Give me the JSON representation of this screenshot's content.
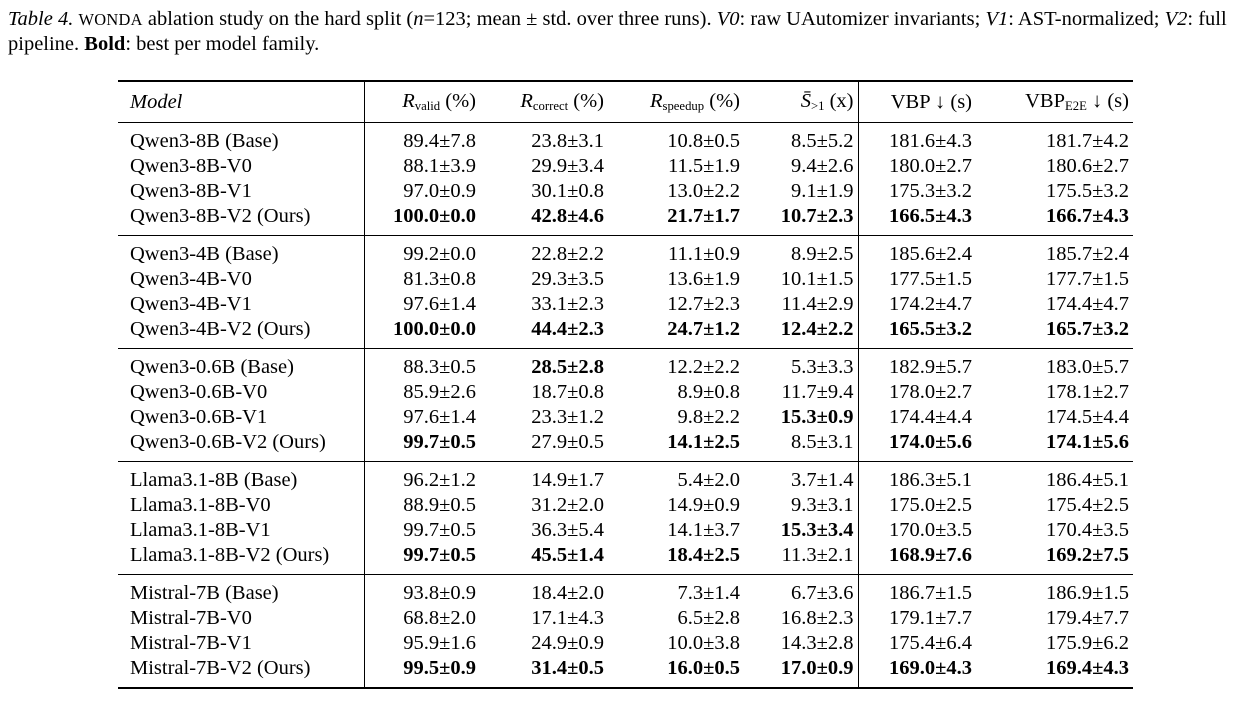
{
  "caption": {
    "label": "Table 4.",
    "name": "WONDA",
    "text1": " ablation study on the hard split (",
    "n": "n",
    "text2": "=123; mean ± std. over three runs). ",
    "v0_label": "V0",
    "v0_text": ": raw UAutomizer invariants; ",
    "v1_label": "V1",
    "v1_text": ": AST-normalized; ",
    "v2_label": "V2",
    "v2_text": ": full pipeline. ",
    "bold_label": "Bold",
    "bold_text": ": best per model family."
  },
  "header": {
    "model": "Model",
    "valid": {
      "sym": "R",
      "sub": "valid",
      "unit": " (%)"
    },
    "correct": {
      "sym": "R",
      "sub": "correct",
      "unit": " (%)"
    },
    "speedup": {
      "sym": "R",
      "sub": "speedup",
      "unit": " (%)"
    },
    "sbar": {
      "sym": "S̄",
      "sub": ">1",
      "unit": " (x)"
    },
    "vbp": "VBP ↓ (s)",
    "vbpe2e": {
      "pre": "VBP",
      "sub": "E2E",
      "unit": " ↓ (s)"
    }
  },
  "groups": [
    {
      "rows": [
        {
          "model": "Qwen3-8B (Base)",
          "cells": [
            "89.4±7.8",
            "23.8±3.1",
            "10.8±0.5",
            "8.5±5.2",
            "181.6±4.3",
            "181.7±4.2"
          ],
          "bold": [
            false,
            false,
            false,
            false,
            false,
            false
          ]
        },
        {
          "model": "Qwen3-8B-V0",
          "cells": [
            "88.1±3.9",
            "29.9±3.4",
            "11.5±1.9",
            "9.4±2.6",
            "180.0±2.7",
            "180.6±2.7"
          ],
          "bold": [
            false,
            false,
            false,
            false,
            false,
            false
          ]
        },
        {
          "model": "Qwen3-8B-V1",
          "cells": [
            "97.0±0.9",
            "30.1±0.8",
            "13.0±2.2",
            "9.1±1.9",
            "175.3±3.2",
            "175.5±3.2"
          ],
          "bold": [
            false,
            false,
            false,
            false,
            false,
            false
          ]
        },
        {
          "model": "Qwen3-8B-V2 (Ours)",
          "cells": [
            "100.0±0.0",
            "42.8±4.6",
            "21.7±1.7",
            "10.7±2.3",
            "166.5±4.3",
            "166.7±4.3"
          ],
          "bold": [
            true,
            true,
            true,
            true,
            true,
            true
          ]
        }
      ]
    },
    {
      "rows": [
        {
          "model": "Qwen3-4B (Base)",
          "cells": [
            "99.2±0.0",
            "22.8±2.2",
            "11.1±0.9",
            "8.9±2.5",
            "185.6±2.4",
            "185.7±2.4"
          ],
          "bold": [
            false,
            false,
            false,
            false,
            false,
            false
          ]
        },
        {
          "model": "Qwen3-4B-V0",
          "cells": [
            "81.3±0.8",
            "29.3±3.5",
            "13.6±1.9",
            "10.1±1.5",
            "177.5±1.5",
            "177.7±1.5"
          ],
          "bold": [
            false,
            false,
            false,
            false,
            false,
            false
          ]
        },
        {
          "model": "Qwen3-4B-V1",
          "cells": [
            "97.6±1.4",
            "33.1±2.3",
            "12.7±2.3",
            "11.4±2.9",
            "174.2±4.7",
            "174.4±4.7"
          ],
          "bold": [
            false,
            false,
            false,
            false,
            false,
            false
          ]
        },
        {
          "model": "Qwen3-4B-V2 (Ours)",
          "cells": [
            "100.0±0.0",
            "44.4±2.3",
            "24.7±1.2",
            "12.4±2.2",
            "165.5±3.2",
            "165.7±3.2"
          ],
          "bold": [
            true,
            true,
            true,
            true,
            true,
            true
          ]
        }
      ]
    },
    {
      "rows": [
        {
          "model": "Qwen3-0.6B (Base)",
          "cells": [
            "88.3±0.5",
            "28.5±2.8",
            "12.2±2.2",
            "5.3±3.3",
            "182.9±5.7",
            "183.0±5.7"
          ],
          "bold": [
            false,
            true,
            false,
            false,
            false,
            false
          ]
        },
        {
          "model": "Qwen3-0.6B-V0",
          "cells": [
            "85.9±2.6",
            "18.7±0.8",
            "8.9±0.8",
            "11.7±9.4",
            "178.0±2.7",
            "178.1±2.7"
          ],
          "bold": [
            false,
            false,
            false,
            false,
            false,
            false
          ]
        },
        {
          "model": "Qwen3-0.6B-V1",
          "cells": [
            "97.6±1.4",
            "23.3±1.2",
            "9.8±2.2",
            "15.3±0.9",
            "174.4±4.4",
            "174.5±4.4"
          ],
          "bold": [
            false,
            false,
            false,
            true,
            false,
            false
          ]
        },
        {
          "model": "Qwen3-0.6B-V2 (Ours)",
          "cells": [
            "99.7±0.5",
            "27.9±0.5",
            "14.1±2.5",
            "8.5±3.1",
            "174.0±5.6",
            "174.1±5.6"
          ],
          "bold": [
            true,
            false,
            true,
            false,
            true,
            true
          ]
        }
      ]
    },
    {
      "rows": [
        {
          "model": "Llama3.1-8B (Base)",
          "cells": [
            "96.2±1.2",
            "14.9±1.7",
            "5.4±2.0",
            "3.7±1.4",
            "186.3±5.1",
            "186.4±5.1"
          ],
          "bold": [
            false,
            false,
            false,
            false,
            false,
            false
          ]
        },
        {
          "model": "Llama3.1-8B-V0",
          "cells": [
            "88.9±0.5",
            "31.2±2.0",
            "14.9±0.9",
            "9.3±3.1",
            "175.0±2.5",
            "175.4±2.5"
          ],
          "bold": [
            false,
            false,
            false,
            false,
            false,
            false
          ]
        },
        {
          "model": "Llama3.1-8B-V1",
          "cells": [
            "99.7±0.5",
            "36.3±5.4",
            "14.1±3.7",
            "15.3±3.4",
            "170.0±3.5",
            "170.4±3.5"
          ],
          "bold": [
            false,
            false,
            false,
            true,
            false,
            false
          ]
        },
        {
          "model": "Llama3.1-8B-V2 (Ours)",
          "cells": [
            "99.7±0.5",
            "45.5±1.4",
            "18.4±2.5",
            "11.3±2.1",
            "168.9±7.6",
            "169.2±7.5"
          ],
          "bold": [
            true,
            true,
            true,
            false,
            true,
            true
          ]
        }
      ]
    },
    {
      "rows": [
        {
          "model": "Mistral-7B (Base)",
          "cells": [
            "93.8±0.9",
            "18.4±2.0",
            "7.3±1.4",
            "6.7±3.6",
            "186.7±1.5",
            "186.9±1.5"
          ],
          "bold": [
            false,
            false,
            false,
            false,
            false,
            false
          ]
        },
        {
          "model": "Mistral-7B-V0",
          "cells": [
            "68.8±2.0",
            "17.1±4.3",
            "6.5±2.8",
            "16.8±2.3",
            "179.1±7.7",
            "179.4±7.7"
          ],
          "bold": [
            false,
            false,
            false,
            false,
            false,
            false
          ]
        },
        {
          "model": "Mistral-7B-V1",
          "cells": [
            "95.9±1.6",
            "24.9±0.9",
            "10.0±3.8",
            "14.3±2.8",
            "175.4±6.4",
            "175.9±6.2"
          ],
          "bold": [
            false,
            false,
            false,
            false,
            false,
            false
          ]
        },
        {
          "model": "Mistral-7B-V2 (Ours)",
          "cells": [
            "99.5±0.9",
            "31.4±0.5",
            "16.0±0.5",
            "17.0±0.9",
            "169.0±4.3",
            "169.4±4.3"
          ],
          "bold": [
            true,
            true,
            true,
            true,
            true,
            true
          ]
        }
      ]
    }
  ]
}
